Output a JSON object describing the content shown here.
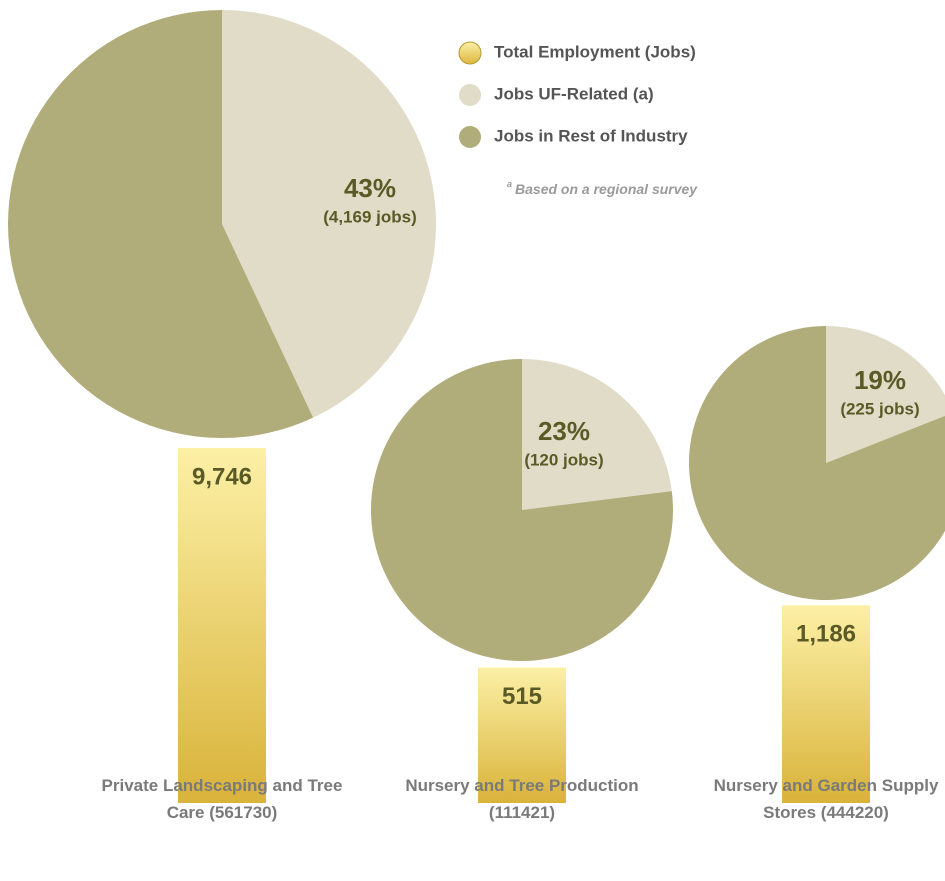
{
  "chart_data": {
    "type": "bar-pie",
    "categories": [
      "Private Landscaping and Tree Care (561730)",
      "Nursery and Tree Production (111421)",
      "Nursery and Garden Supply Stores (444220)"
    ],
    "series": [
      {
        "name": "Total Employment (Jobs)",
        "color": "#e3bf45",
        "values": [
          9746,
          515,
          1186
        ],
        "value_labels": [
          "9,746",
          "515",
          "1,186"
        ]
      },
      {
        "name": "Jobs UF-Related (a)",
        "color": "#e0dcc8",
        "values": [
          43,
          23,
          19
        ],
        "value_labels": [
          "43%",
          "23%",
          "19%"
        ],
        "jobs_labels": [
          "(4,169 jobs)",
          "(120 jobs)",
          "(225 jobs)"
        ]
      },
      {
        "name": "Jobs in Rest of Industry",
        "color": "#b0ad7a",
        "values": [
          57,
          77,
          81
        ]
      }
    ],
    "yscale": "log",
    "ylim": [
      84,
      10000
    ],
    "footnote": {
      "mark": "a",
      "text": "Based on a regional survey"
    }
  }
}
